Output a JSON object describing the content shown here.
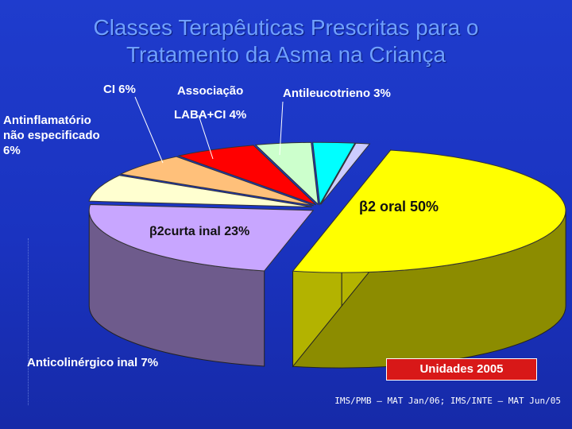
{
  "slide": {
    "title_line1": "Classes Terapêuticas Prescritas  para o",
    "title_line2": "Tratamento da Asma na Criança",
    "badge": "Unidades 2005",
    "source": "IMS/PMB – MAT Jan/06; IMS/INTE – MAT Jun/05"
  },
  "labels": {
    "ci": "CI 6%",
    "associacao_line1": "Associação",
    "associacao_line2": "LABA+CI 4%",
    "antileucotrieno": "Antileucotrieno 3%",
    "antinflamatorio_line1": "Antinflamatório",
    "antinflamatorio_line2": "não especificado",
    "antinflamatorio_line3": "6%",
    "beta2_oral": "β2 oral 50%",
    "beta2_curta": "β2curta inal 23%",
    "anticolinergico": "Anticolinérgico inal 7%"
  },
  "chart_data": {
    "type": "pie",
    "style": "3d-exploded",
    "slices": [
      {
        "label": "β2 oral",
        "value": 50,
        "color": "#ffff00"
      },
      {
        "label": "β2curta inal",
        "value": 23,
        "color": "#c8a6ff"
      },
      {
        "label": "Anticolinérgico inal",
        "value": 7,
        "color": "#ffffd0"
      },
      {
        "label": "Antinflamatório não especificado",
        "value": 6,
        "color": "#ffc07a"
      },
      {
        "label": "CI",
        "value": 6,
        "color": "#ff0000"
      },
      {
        "label": "Associação LABA+CI",
        "value": 4,
        "color": "#ccffcc"
      },
      {
        "label": "Antileucotrieno",
        "value": 3,
        "color": "#00ffff"
      },
      {
        "label": "",
        "value": 1,
        "color": "#ccccff"
      }
    ]
  }
}
